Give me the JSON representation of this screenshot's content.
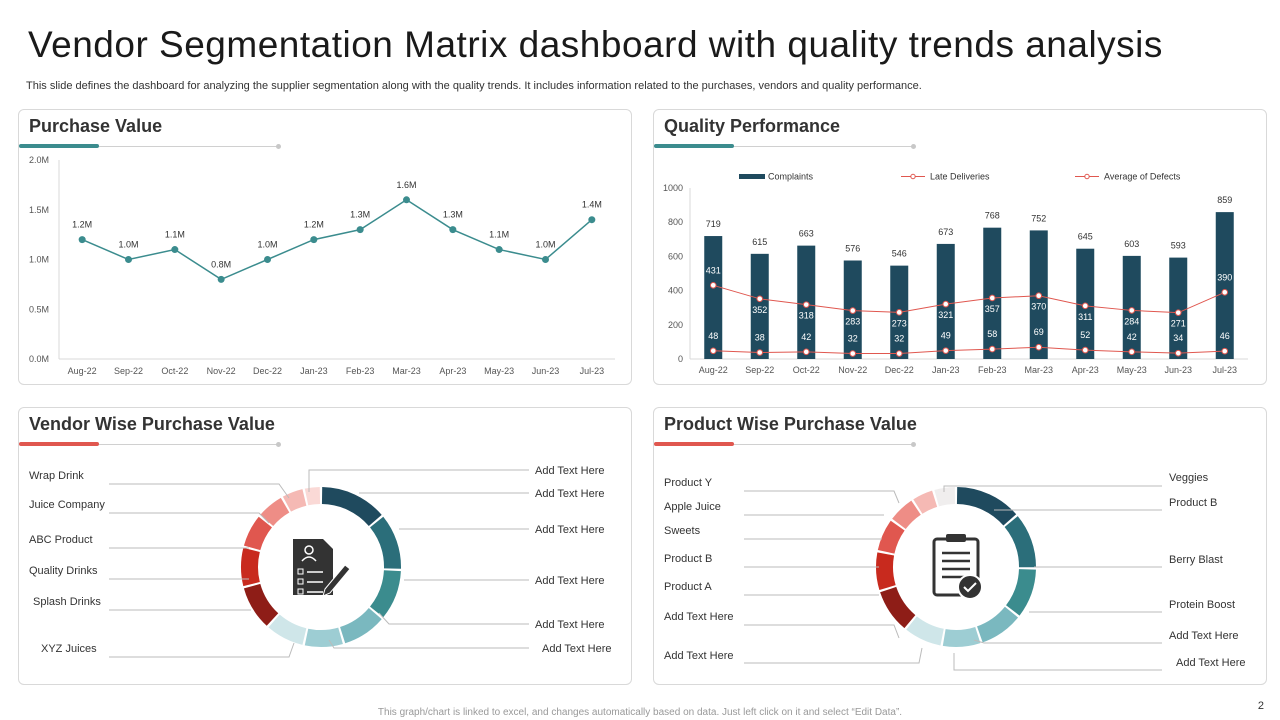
{
  "header": {
    "title": "Vendor Segmentation Matrix dashboard with quality trends analysis",
    "subtitle": "This slide defines the dashboard for analyzing the supplier segmentation along with the quality trends. It includes information related to the purchases, vendors and quality performance."
  },
  "panels": {
    "purchase_value": "Purchase Value",
    "quality_performance": "Quality Performance",
    "vendor_wise": "Vendor Wise Purchase Value",
    "product_wise": "Product Wise Purchase Value"
  },
  "colors": {
    "teal": "#3b8c8e",
    "navy": "#1f4a5e",
    "red": "#e0574f",
    "accent_teal": "#3b8c8e",
    "accent_red": "#e0574f"
  },
  "chart_data": [
    {
      "type": "line",
      "title": "Purchase Value",
      "categories": [
        "Aug-22",
        "Sep-22",
        "Oct-22",
        "Nov-22",
        "Dec-22",
        "Jan-23",
        "Feb-23",
        "Mar-23",
        "Apr-23",
        "May-23",
        "Jun-23",
        "Jul-23"
      ],
      "values": [
        1.2,
        1.0,
        1.1,
        0.8,
        1.0,
        1.2,
        1.3,
        1.6,
        1.3,
        1.1,
        1.0,
        1.4
      ],
      "data_labels": [
        "1.2M",
        "1.0M",
        "1.1M",
        "0.8M",
        "1.0M",
        "1.2M",
        "1.3M",
        "1.6M",
        "1.3M",
        "1.1M",
        "1.0M",
        "1.4M"
      ],
      "ylim": [
        0,
        2.0
      ],
      "yticks": [
        "0.0M",
        "0.5M",
        "1.0M",
        "1.5M",
        "2.0M"
      ],
      "ytick_values": [
        0,
        0.5,
        1.0,
        1.5,
        2.0
      ],
      "grid": false,
      "color": "#3b8c8e"
    },
    {
      "type": "bar",
      "title": "Quality Performance",
      "categories": [
        "Aug-22",
        "Sep-22",
        "Oct-22",
        "Nov-22",
        "Dec-22",
        "Jan-23",
        "Feb-23",
        "Mar-23",
        "Apr-23",
        "May-23",
        "Jun-23",
        "Jul-23"
      ],
      "series": [
        {
          "name": "Complaints",
          "type": "bar",
          "color": "#1f4a5e",
          "values": [
            719,
            615,
            663,
            576,
            546,
            673,
            768,
            752,
            645,
            603,
            593,
            859
          ]
        },
        {
          "name": "Late Deliveries",
          "type": "line",
          "color": "#e0574f",
          "values": [
            431,
            352,
            318,
            283,
            273,
            321,
            357,
            370,
            311,
            284,
            271,
            390
          ]
        },
        {
          "name": "Average of Defects",
          "type": "line",
          "color": "#e0574f",
          "values": [
            48,
            38,
            42,
            32,
            32,
            49,
            58,
            69,
            52,
            42,
            34,
            46
          ]
        }
      ],
      "ylim": [
        0,
        1000
      ],
      "yticks": [
        0,
        200,
        400,
        600,
        800,
        1000
      ],
      "legend": "top"
    },
    {
      "type": "pie",
      "title": "Vendor Wise Purchase Value",
      "left_labels": [
        "Wrap Drink",
        "Juice Company",
        "ABC Product",
        "Quality Drinks",
        "Splash Drinks",
        "XYZ Juices"
      ],
      "right_labels": [
        "Add Text Here",
        "Add Text Here",
        "Add Text Here",
        "Add Text Here",
        "Add Text Here",
        "Add Text Here"
      ],
      "slices": [
        {
          "value": 12,
          "color": "#1f4a5e"
        },
        {
          "value": 10,
          "color": "#2b6e7a"
        },
        {
          "value": 9,
          "color": "#3b8c8e"
        },
        {
          "value": 8,
          "color": "#7ab8bf"
        },
        {
          "value": 7,
          "color": "#9dcdd3"
        },
        {
          "value": 7,
          "color": "#cfe6e9"
        },
        {
          "value": 8,
          "color": "#8e1d17"
        },
        {
          "value": 7,
          "color": "#c82a1e"
        },
        {
          "value": 6,
          "color": "#e0574f"
        },
        {
          "value": 5,
          "color": "#ee8d86"
        },
        {
          "value": 4,
          "color": "#f5b9b4"
        },
        {
          "value": 3,
          "color": "#fad9d6"
        }
      ]
    },
    {
      "type": "pie",
      "title": "Product Wise Purchase Value",
      "left_labels": [
        "Product Y",
        "Apple Juice",
        "Sweets",
        "Product B",
        "Product A",
        "Add Text Here",
        "Add Text Here"
      ],
      "right_labels": [
        "Veggies",
        "Product B",
        "Berry Blast",
        "Protein Boost",
        "Add Text Here",
        "Add Text Here"
      ],
      "slices": [
        {
          "value": 12,
          "color": "#1f4a5e"
        },
        {
          "value": 10,
          "color": "#2b6e7a"
        },
        {
          "value": 9,
          "color": "#3b8c8e"
        },
        {
          "value": 8,
          "color": "#7ab8bf"
        },
        {
          "value": 7,
          "color": "#9dcdd3"
        },
        {
          "value": 7,
          "color": "#cfe6e9"
        },
        {
          "value": 8,
          "color": "#8e1d17"
        },
        {
          "value": 7,
          "color": "#c82a1e"
        },
        {
          "value": 6,
          "color": "#e0574f"
        },
        {
          "value": 5,
          "color": "#ee8d86"
        },
        {
          "value": 4,
          "color": "#f5b9b4"
        },
        {
          "value": 4,
          "color": "#f0eeee"
        }
      ]
    }
  ],
  "icons": {
    "vendor_center": "document-checklist-pen-icon",
    "product_center": "clipboard-check-icon"
  },
  "footer": {
    "note": "This graph/chart is linked to excel, and changes automatically based on data. Just left click on it and select “Edit Data”.",
    "page": "2"
  }
}
